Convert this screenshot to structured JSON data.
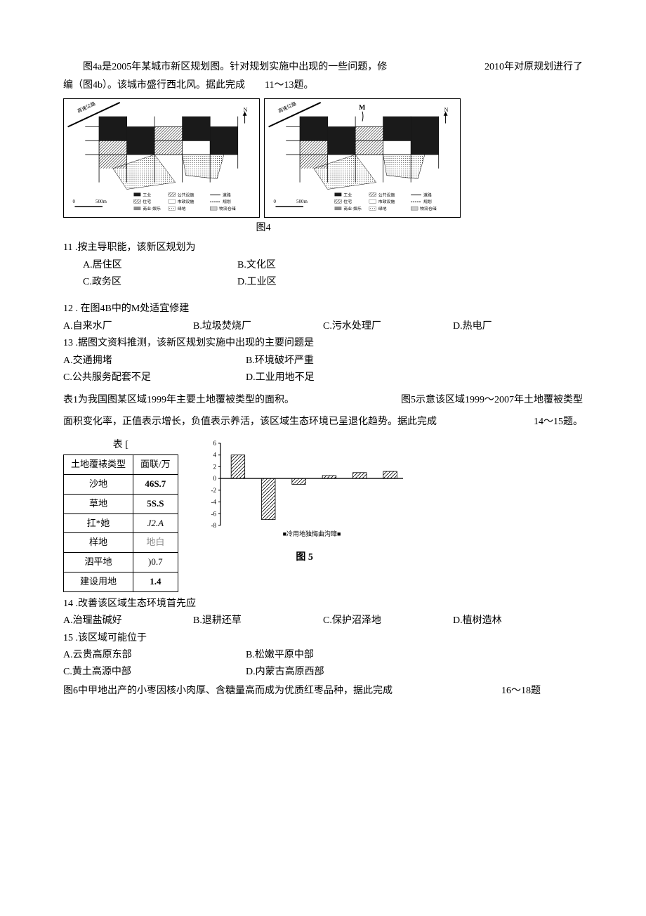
{
  "intro1_a": "图4a是2005年某城市新区规划图。针对规划实施中出现的一些问题，修",
  "intro1_b": "2010年对原规划进行了",
  "intro2_a": "编（图4b）。该城市盛行西北风。据此完成",
  "intro2_b": "11〜13题。",
  "fig4_caption": "图4",
  "q11": "11 .按主导职能，该新区规划为",
  "q11_A": "A.居住区",
  "q11_B": "B.文化区",
  "q11_C": "C.政务区",
  "q11_D": "D.工业区",
  "q12": "12  . 在图4B中的M处适宜修建",
  "q12_A": "A.自来水厂",
  "q12_B": "B.垃圾焚烧厂",
  "q12_C": "C.污水处理厂",
  "q12_D": "D.热电厂",
  "q13": "13 .据图文资料推测，该新区规划实施中出现的主要问题是",
  "q13_A": "A.交通拥堵",
  "q13_B": "B.环境破坏严重",
  "q13_C": "C.公共服务配套不足",
  "q13_D": "D.工业用地不足",
  "para2_line1_a": "表1为我国图某区域1999年主要土地覆被类型的面积。",
  "para2_line1_b": "图5示意该区域1999〜2007年土地覆被类型",
  "para2_line2_a": "面积变化率，正值表示增长，负值表示养活，该区域生态环境已呈退化趋势。据此完成",
  "para2_line2_b": "14〜15题。",
  "table1_title": "表 [",
  "table1": {
    "header": [
      "土地覆裱类型",
      "面联/万"
    ],
    "rows": [
      [
        "沙地",
        "46S.7"
      ],
      [
        "草地",
        "5S.S"
      ],
      [
        "扛*她",
        "J2.A"
      ],
      [
        "样地",
        "地白"
      ],
      [
        "泗平地",
        ")0.7"
      ],
      [
        "建设用地",
        "1.4"
      ]
    ]
  },
  "chart5": {
    "categories_count": 6,
    "values": [
      4,
      -7,
      -1,
      0.5,
      1,
      1.2
    ],
    "ylim": [
      -8,
      6
    ],
    "yticks": [
      -8,
      -6,
      -4,
      -2,
      0,
      2,
      4,
      6
    ],
    "bar_fill": "#ffffff",
    "bar_stroke": "#000000",
    "hatch": true,
    "legend_text": "■冷用地独悔曲沟璋■",
    "caption": "图 5"
  },
  "q14": "14 .改善该区域生态环境首先应",
  "q14_A": "A.治理盐碱好",
  "q14_B": "B.退耕还草",
  "q14_C": "C.保护沼泽地",
  "q14_D": "D.植树造林",
  "q15": "15 .该区域可能位于",
  "q15_A": "A.云贵高原东部",
  "q15_B": "B.松嫩平原中部",
  "q15_C": "C.黄土高源中部",
  "q15_D": "D.内蒙古高原西部",
  "para3_a": "图6中甲地出产的小枣因核小肉厚、含糖量高而成为优质红枣品种，据此完成",
  "para3_b": "16〜18题",
  "map_legend": {
    "items": [
      "工业",
      "公共设施",
      "道路",
      "住宅",
      "市政设施",
      "规划",
      "商业·娱乐",
      "绿地",
      "物流仓储"
    ]
  }
}
